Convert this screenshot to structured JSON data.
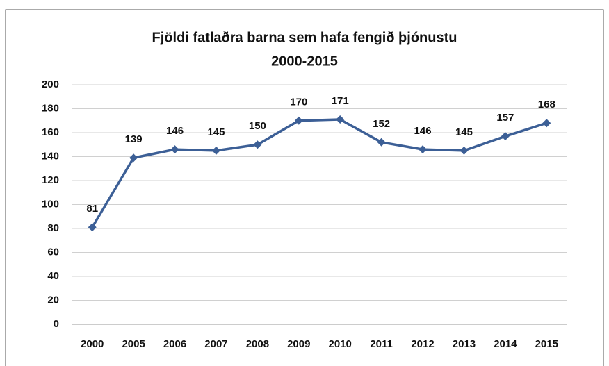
{
  "chart_data": {
    "type": "line",
    "title": "Fjöldi fatlaðra barna sem hafa fengið þjónustu",
    "subtitle": "2000-2015",
    "categories": [
      "2000",
      "2005",
      "2006",
      "2007",
      "2008",
      "2009",
      "2010",
      "2011",
      "2012",
      "2013",
      "2014",
      "2015"
    ],
    "series": [
      {
        "name": "Fjöldi",
        "color": "#3c5f96",
        "values": [
          81,
          139,
          146,
          145,
          150,
          170,
          171,
          152,
          146,
          145,
          157,
          168
        ]
      }
    ],
    "ylim": [
      0,
      200
    ],
    "yticks": [
      0,
      20,
      40,
      60,
      80,
      100,
      120,
      140,
      160,
      180,
      200
    ],
    "grid": true
  }
}
